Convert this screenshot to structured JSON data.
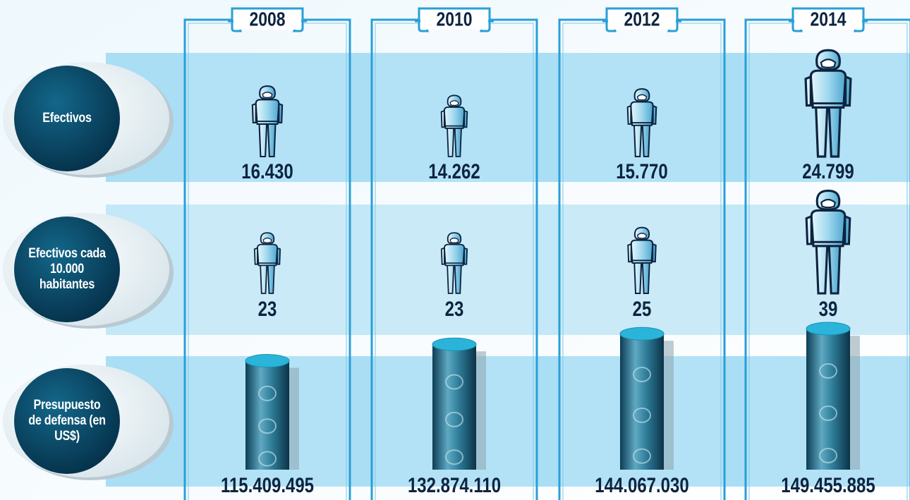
{
  "years": [
    "2008",
    "2010",
    "2012",
    "2014"
  ],
  "chart_data": [
    {
      "type": "pictograph",
      "icon": "person",
      "title": "Efectivos",
      "values": [
        16430,
        14262,
        15770,
        24799
      ],
      "value_labels": [
        "16.430",
        "14.262",
        "15.770",
        "24.799"
      ],
      "color": "#bfe6f6"
    },
    {
      "type": "pictograph",
      "icon": "person",
      "title": "Efectivos cada 10.000 habitantes",
      "values": [
        23,
        23,
        25,
        39
      ],
      "value_labels": [
        "23",
        "23",
        "25",
        "39"
      ],
      "color": "#bfe6f6"
    },
    {
      "type": "pictograph",
      "icon": "cylinder",
      "title": "Presupuesto de defensa (en US$)",
      "values": [
        115409495,
        132874110,
        144067030,
        149455885
      ],
      "value_labels": [
        "115.409.495",
        "132.874.110",
        "144.067.030",
        "149.455.885"
      ],
      "color": "#2bb4d9"
    }
  ]
}
